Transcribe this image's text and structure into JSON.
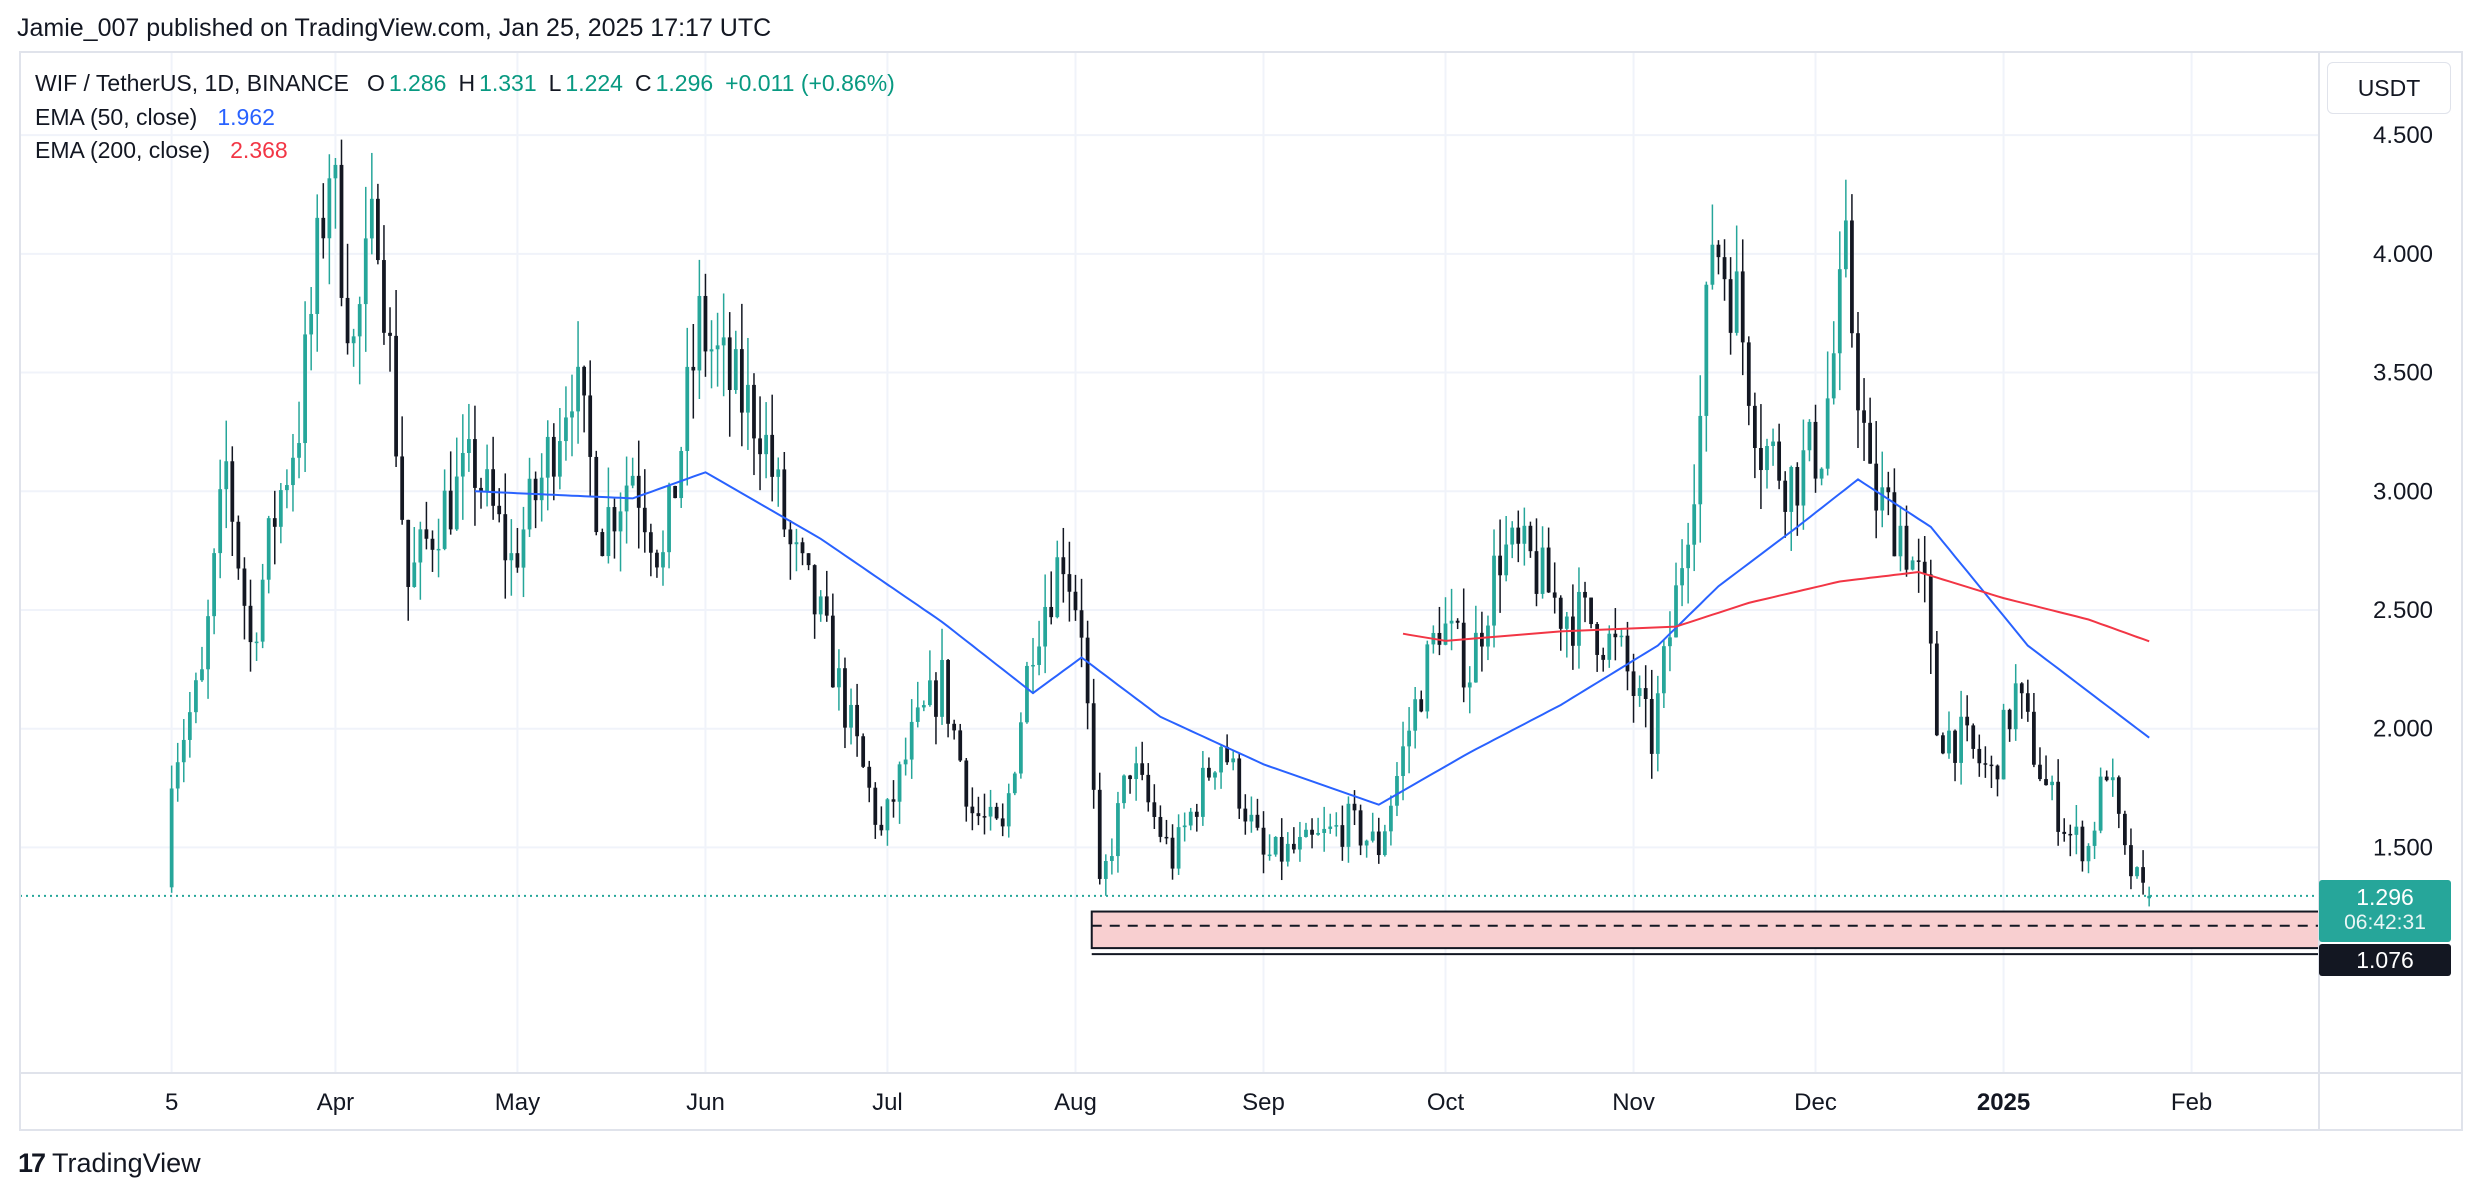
{
  "header": {
    "publisher": "Jamie_007 published on TradingView.com, Jan 25, 2025 17:17 UTC"
  },
  "legend": {
    "symbol": "WIF / TetherUS, 1D, BINANCE",
    "open_label": "O",
    "open": "1.286",
    "high_label": "H",
    "high": "1.331",
    "low_label": "L",
    "low": "1.224",
    "close_label": "C",
    "close": "1.296",
    "change": "+0.011 (+0.86%)",
    "ema50_label": "EMA (50, close)",
    "ema50_value": "1.962",
    "ema200_label": "EMA (200, close)",
    "ema200_value": "2.368"
  },
  "currency_button": "USDT",
  "price_tags": {
    "last_price": "1.296",
    "countdown": "06:42:31",
    "level": "1.076"
  },
  "footer": {
    "brand": "TradingView",
    "brand_mark": "17"
  },
  "colors": {
    "up": "#26a69a",
    "down": "#131722",
    "ema50": "#2962ff",
    "ema200": "#f23645",
    "zone": "#f8cfd0",
    "grid": "#f0f3fa"
  },
  "chart_data": {
    "type": "candlestick",
    "ylim": [
      0.55,
      4.85
    ],
    "y_ticks": [
      1.5,
      2.0,
      2.5,
      3.0,
      3.5,
      4.0,
      4.5
    ],
    "y_tick_labels": [
      "1.500",
      "2.000",
      "2.500",
      "3.000",
      "3.500",
      "4.000",
      "4.500"
    ],
    "x_ticks": [
      "5",
      "Apr",
      "May",
      "Jun",
      "Jul",
      "Aug",
      "Sep",
      "Oct",
      "Nov",
      "Dec",
      "2025",
      "Feb"
    ],
    "x_tick_dates": [
      "2024-03-05",
      "2024-04-01",
      "2024-05-01",
      "2024-06-01",
      "2024-07-01",
      "2024-08-01",
      "2024-09-01",
      "2024-10-01",
      "2024-11-01",
      "2024-12-01",
      "2025-01-01",
      "2025-02-01"
    ],
    "x_range": [
      "2024-02-09",
      "2025-02-22"
    ],
    "first_candle_date": "2024-03-05",
    "last_candle_date": "2025-01-25",
    "close_keypoints": [
      {
        "date": "2024-03-05",
        "close": 1.85
      },
      {
        "date": "2024-03-10",
        "close": 2.2
      },
      {
        "date": "2024-03-14",
        "close": 3.1
      },
      {
        "date": "2024-03-18",
        "close": 2.35
      },
      {
        "date": "2024-03-22",
        "close": 2.9
      },
      {
        "date": "2024-03-26",
        "close": 3.3
      },
      {
        "date": "2024-03-31",
        "close": 4.4
      },
      {
        "date": "2024-04-04",
        "close": 3.6
      },
      {
        "date": "2024-04-08",
        "close": 4.2
      },
      {
        "date": "2024-04-13",
        "close": 2.6
      },
      {
        "date": "2024-04-18",
        "close": 2.9
      },
      {
        "date": "2024-04-24",
        "close": 3.1
      },
      {
        "date": "2024-04-30",
        "close": 2.7
      },
      {
        "date": "2024-05-05",
        "close": 3.05
      },
      {
        "date": "2024-05-10",
        "close": 3.5
      },
      {
        "date": "2024-05-15",
        "close": 2.85
      },
      {
        "date": "2024-05-20",
        "close": 3.1
      },
      {
        "date": "2024-05-25",
        "close": 2.7
      },
      {
        "date": "2024-05-31",
        "close": 3.7
      },
      {
        "date": "2024-06-05",
        "close": 3.45
      },
      {
        "date": "2024-06-10",
        "close": 3.3
      },
      {
        "date": "2024-06-15",
        "close": 2.75
      },
      {
        "date": "2024-06-20",
        "close": 2.45
      },
      {
        "date": "2024-06-25",
        "close": 2.0
      },
      {
        "date": "2024-06-30",
        "close": 1.55
      },
      {
        "date": "2024-07-05",
        "close": 1.95
      },
      {
        "date": "2024-07-10",
        "close": 2.2
      },
      {
        "date": "2024-07-15",
        "close": 1.65
      },
      {
        "date": "2024-07-20",
        "close": 1.55
      },
      {
        "date": "2024-07-25",
        "close": 2.4
      },
      {
        "date": "2024-07-30",
        "close": 2.75
      },
      {
        "date": "2024-08-02",
        "close": 2.45
      },
      {
        "date": "2024-08-05",
        "close": 1.3
      },
      {
        "date": "2024-08-10",
        "close": 1.85
      },
      {
        "date": "2024-08-17",
        "close": 1.45
      },
      {
        "date": "2024-08-25",
        "close": 1.95
      },
      {
        "date": "2024-09-01",
        "close": 1.45
      },
      {
        "date": "2024-09-08",
        "close": 1.5
      },
      {
        "date": "2024-09-15",
        "close": 1.6
      },
      {
        "date": "2024-09-20",
        "close": 1.5
      },
      {
        "date": "2024-09-25",
        "close": 2.0
      },
      {
        "date": "2024-09-30",
        "close": 2.45
      },
      {
        "date": "2024-10-05",
        "close": 2.25
      },
      {
        "date": "2024-10-10",
        "close": 2.75
      },
      {
        "date": "2024-10-15",
        "close": 2.7
      },
      {
        "date": "2024-10-20",
        "close": 2.5
      },
      {
        "date": "2024-10-25",
        "close": 2.45
      },
      {
        "date": "2024-10-30",
        "close": 2.3
      },
      {
        "date": "2024-11-04",
        "close": 1.95
      },
      {
        "date": "2024-11-08",
        "close": 2.55
      },
      {
        "date": "2024-11-12",
        "close": 3.3
      },
      {
        "date": "2024-11-14",
        "close": 4.1
      },
      {
        "date": "2024-11-18",
        "close": 3.8
      },
      {
        "date": "2024-11-22",
        "close": 3.2
      },
      {
        "date": "2024-11-27",
        "close": 3.05
      },
      {
        "date": "2024-12-02",
        "close": 3.2
      },
      {
        "date": "2024-12-06",
        "close": 3.95
      },
      {
        "date": "2024-12-10",
        "close": 3.0
      },
      {
        "date": "2024-12-15",
        "close": 2.85
      },
      {
        "date": "2024-12-19",
        "close": 2.55
      },
      {
        "date": "2024-12-21",
        "close": 2.0
      },
      {
        "date": "2024-12-25",
        "close": 1.95
      },
      {
        "date": "2024-12-30",
        "close": 1.8
      },
      {
        "date": "2025-01-03",
        "close": 2.15
      },
      {
        "date": "2025-01-08",
        "close": 1.75
      },
      {
        "date": "2025-01-12",
        "close": 1.55
      },
      {
        "date": "2025-01-15",
        "close": 1.5
      },
      {
        "date": "2025-01-18",
        "close": 1.85
      },
      {
        "date": "2025-01-21",
        "close": 1.45
      },
      {
        "date": "2025-01-24",
        "close": 1.3
      },
      {
        "date": "2025-01-25",
        "close": 1.296
      }
    ],
    "ema50_keypoints": [
      {
        "date": "2024-04-24",
        "value": 3.0
      },
      {
        "date": "2024-05-20",
        "value": 2.97
      },
      {
        "date": "2024-06-01",
        "value": 3.08
      },
      {
        "date": "2024-06-20",
        "value": 2.8
      },
      {
        "date": "2024-07-10",
        "value": 2.45
      },
      {
        "date": "2024-07-25",
        "value": 2.15
      },
      {
        "date": "2024-08-02",
        "value": 2.3
      },
      {
        "date": "2024-08-15",
        "value": 2.05
      },
      {
        "date": "2024-09-01",
        "value": 1.85
      },
      {
        "date": "2024-09-20",
        "value": 1.68
      },
      {
        "date": "2024-10-05",
        "value": 1.9
      },
      {
        "date": "2024-10-20",
        "value": 2.1
      },
      {
        "date": "2024-11-05",
        "value": 2.35
      },
      {
        "date": "2024-11-15",
        "value": 2.6
      },
      {
        "date": "2024-11-28",
        "value": 2.85
      },
      {
        "date": "2024-12-08",
        "value": 3.05
      },
      {
        "date": "2024-12-20",
        "value": 2.85
      },
      {
        "date": "2025-01-05",
        "value": 2.35
      },
      {
        "date": "2025-01-25",
        "value": 1.962
      }
    ],
    "ema200_keypoints": [
      {
        "date": "2024-09-24",
        "value": 2.4
      },
      {
        "date": "2024-10-01",
        "value": 2.37
      },
      {
        "date": "2024-10-20",
        "value": 2.41
      },
      {
        "date": "2024-11-08",
        "value": 2.43
      },
      {
        "date": "2024-11-20",
        "value": 2.53
      },
      {
        "date": "2024-12-05",
        "value": 2.62
      },
      {
        "date": "2024-12-18",
        "value": 2.66
      },
      {
        "date": "2025-01-01",
        "value": 2.55
      },
      {
        "date": "2025-01-15",
        "value": 2.46
      },
      {
        "date": "2025-01-25",
        "value": 2.368
      }
    ],
    "support_zone": {
      "from_date": "2024-08-05",
      "low": 1.076,
      "high": 1.23,
      "mid_dashed": 1.17
    },
    "last_close": 1.296,
    "level_label": 1.076
  }
}
